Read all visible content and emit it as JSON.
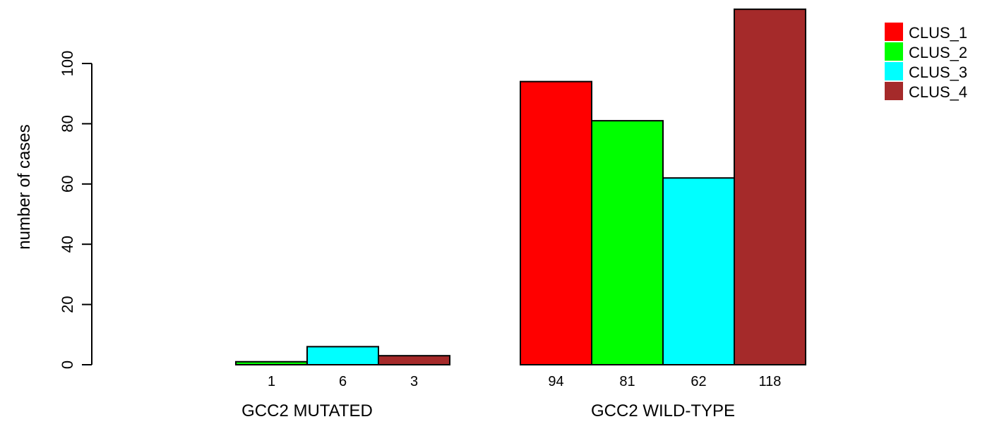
{
  "chart_data": {
    "type": "bar",
    "ylabel": "number of cases",
    "ylim": [
      0,
      120
    ],
    "yticks": [
      0,
      20,
      40,
      60,
      80,
      100
    ],
    "groups": [
      "GCC2 MUTATED",
      "GCC2 WILD-TYPE"
    ],
    "series": [
      {
        "name": "CLUS_1",
        "color": "#ff0000",
        "values": [
          0,
          94
        ],
        "labels": [
          "",
          "94"
        ]
      },
      {
        "name": "CLUS_2",
        "color": "#00ff00",
        "values": [
          1,
          81
        ],
        "labels": [
          "1",
          "81"
        ]
      },
      {
        "name": "CLUS_3",
        "color": "#00ffff",
        "values": [
          6,
          62
        ],
        "labels": [
          "6",
          "62"
        ]
      },
      {
        "name": "CLUS_4",
        "color": "#a52a2a",
        "values": [
          3,
          118
        ],
        "labels": [
          "3",
          "118"
        ]
      }
    ],
    "legend_position": "top-right",
    "grid": false
  }
}
